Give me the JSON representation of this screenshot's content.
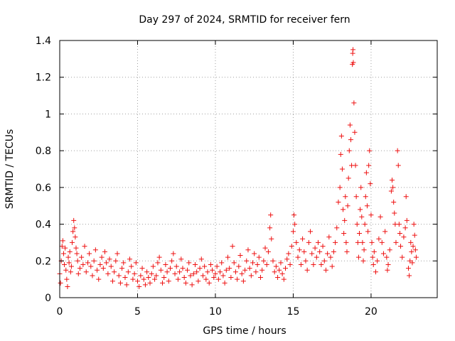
{
  "chart_data": {
    "type": "scatter",
    "title": "Day 297 of 2024, SRMTID for receiver fern",
    "xlabel": "GPS time / hours",
    "ylabel": "SRMTID / TECUs",
    "xlim": [
      0,
      24.25
    ],
    "ylim": [
      0,
      1.4
    ],
    "xticks": [
      0,
      5,
      10,
      15,
      20
    ],
    "xtick_labels": [
      "0",
      "5",
      "10",
      "15",
      "20"
    ],
    "yticks": [
      0,
      0.2,
      0.4,
      0.6,
      0.8,
      1.0,
      1.2,
      1.4
    ],
    "ytick_labels": [
      "0",
      "0.2",
      "0.4",
      "0.6",
      "0.8",
      "1",
      "1.2",
      "1.4"
    ],
    "grid": true,
    "marker": "plus",
    "colors": {
      "series": "#ee1111",
      "grid": "#a0a0a0",
      "axis": "#000000"
    },
    "series": [
      {
        "name": "SRMTID",
        "points": [
          [
            0.0,
            0.13
          ],
          [
            0.05,
            0.08
          ],
          [
            0.1,
            0.2
          ],
          [
            0.15,
            0.28
          ],
          [
            0.2,
            0.31
          ],
          [
            0.25,
            0.24
          ],
          [
            0.3,
            0.18
          ],
          [
            0.35,
            0.27
          ],
          [
            0.4,
            0.15
          ],
          [
            0.45,
            0.1
          ],
          [
            0.5,
            0.06
          ],
          [
            0.55,
            0.22
          ],
          [
            0.6,
            0.19
          ],
          [
            0.65,
            0.25
          ],
          [
            0.7,
            0.14
          ],
          [
            0.75,
            0.17
          ],
          [
            0.8,
            0.3
          ],
          [
            0.85,
            0.36
          ],
          [
            0.9,
            0.42
          ],
          [
            0.95,
            0.38
          ],
          [
            1.0,
            0.33
          ],
          [
            1.05,
            0.27
          ],
          [
            1.1,
            0.24
          ],
          [
            1.15,
            0.2
          ],
          [
            1.2,
            0.13
          ],
          [
            1.3,
            0.16
          ],
          [
            1.4,
            0.22
          ],
          [
            1.5,
            0.18
          ],
          [
            1.6,
            0.28
          ],
          [
            1.7,
            0.14
          ],
          [
            1.8,
            0.19
          ],
          [
            1.9,
            0.24
          ],
          [
            2.0,
            0.17
          ],
          [
            2.1,
            0.12
          ],
          [
            2.2,
            0.2
          ],
          [
            2.3,
            0.26
          ],
          [
            2.4,
            0.15
          ],
          [
            2.5,
            0.1
          ],
          [
            2.6,
            0.18
          ],
          [
            2.7,
            0.22
          ],
          [
            2.8,
            0.16
          ],
          [
            2.9,
            0.25
          ],
          [
            3.0,
            0.19
          ],
          [
            3.1,
            0.13
          ],
          [
            3.2,
            0.21
          ],
          [
            3.3,
            0.17
          ],
          [
            3.4,
            0.09
          ],
          [
            3.5,
            0.14
          ],
          [
            3.6,
            0.2
          ],
          [
            3.7,
            0.24
          ],
          [
            3.8,
            0.12
          ],
          [
            3.9,
            0.08
          ],
          [
            4.0,
            0.16
          ],
          [
            4.1,
            0.19
          ],
          [
            4.2,
            0.11
          ],
          [
            4.3,
            0.07
          ],
          [
            4.4,
            0.14
          ],
          [
            4.5,
            0.21
          ],
          [
            4.6,
            0.17
          ],
          [
            4.7,
            0.1
          ],
          [
            4.8,
            0.13
          ],
          [
            4.9,
            0.19
          ],
          [
            5.0,
            0.09
          ],
          [
            5.1,
            0.06
          ],
          [
            5.2,
            0.12
          ],
          [
            5.3,
            0.16
          ],
          [
            5.4,
            0.1
          ],
          [
            5.5,
            0.07
          ],
          [
            5.6,
            0.14
          ],
          [
            5.7,
            0.11
          ],
          [
            5.8,
            0.08
          ],
          [
            5.9,
            0.13
          ],
          [
            6.0,
            0.17
          ],
          [
            6.1,
            0.1
          ],
          [
            6.2,
            0.12
          ],
          [
            6.3,
            0.19
          ],
          [
            6.4,
            0.22
          ],
          [
            6.5,
            0.15
          ],
          [
            6.6,
            0.08
          ],
          [
            6.7,
            0.11
          ],
          [
            6.8,
            0.18
          ],
          [
            6.9,
            0.14
          ],
          [
            7.0,
            0.09
          ],
          [
            7.1,
            0.16
          ],
          [
            7.2,
            0.2
          ],
          [
            7.3,
            0.24
          ],
          [
            7.4,
            0.13
          ],
          [
            7.5,
            0.17
          ],
          [
            7.6,
            0.1
          ],
          [
            7.7,
            0.14
          ],
          [
            7.8,
            0.21
          ],
          [
            7.9,
            0.16
          ],
          [
            8.0,
            0.11
          ],
          [
            8.1,
            0.08
          ],
          [
            8.2,
            0.15
          ],
          [
            8.3,
            0.19
          ],
          [
            8.4,
            0.12
          ],
          [
            8.5,
            0.07
          ],
          [
            8.6,
            0.13
          ],
          [
            8.7,
            0.18
          ],
          [
            8.8,
            0.14
          ],
          [
            8.9,
            0.09
          ],
          [
            9.0,
            0.16
          ],
          [
            9.1,
            0.21
          ],
          [
            9.2,
            0.12
          ],
          [
            9.3,
            0.17
          ],
          [
            9.4,
            0.1
          ],
          [
            9.5,
            0.14
          ],
          [
            9.6,
            0.08
          ],
          [
            9.7,
            0.18
          ],
          [
            9.8,
            0.15
          ],
          [
            9.9,
            0.11
          ],
          [
            10.0,
            0.13
          ],
          [
            10.1,
            0.17
          ],
          [
            10.2,
            0.1
          ],
          [
            10.3,
            0.14
          ],
          [
            10.4,
            0.19
          ],
          [
            10.5,
            0.12
          ],
          [
            10.6,
            0.08
          ],
          [
            10.7,
            0.15
          ],
          [
            10.8,
            0.22
          ],
          [
            10.9,
            0.16
          ],
          [
            11.0,
            0.11
          ],
          [
            11.1,
            0.28
          ],
          [
            11.2,
            0.19
          ],
          [
            11.3,
            0.14
          ],
          [
            11.4,
            0.1
          ],
          [
            11.5,
            0.17
          ],
          [
            11.6,
            0.23
          ],
          [
            11.7,
            0.13
          ],
          [
            11.8,
            0.09
          ],
          [
            11.9,
            0.15
          ],
          [
            12.0,
            0.2
          ],
          [
            12.1,
            0.26
          ],
          [
            12.2,
            0.16
          ],
          [
            12.3,
            0.12
          ],
          [
            12.4,
            0.19
          ],
          [
            12.5,
            0.24
          ],
          [
            12.6,
            0.14
          ],
          [
            12.7,
            0.18
          ],
          [
            12.8,
            0.22
          ],
          [
            12.9,
            0.11
          ],
          [
            13.0,
            0.15
          ],
          [
            13.1,
            0.2
          ],
          [
            13.2,
            0.27
          ],
          [
            13.3,
            0.18
          ],
          [
            13.4,
            0.25
          ],
          [
            13.5,
            0.38
          ],
          [
            13.55,
            0.45
          ],
          [
            13.6,
            0.32
          ],
          [
            13.7,
            0.2
          ],
          [
            13.8,
            0.14
          ],
          [
            13.9,
            0.17
          ],
          [
            14.0,
            0.11
          ],
          [
            14.1,
            0.15
          ],
          [
            14.2,
            0.19
          ],
          [
            14.3,
            0.13
          ],
          [
            14.4,
            0.1
          ],
          [
            14.5,
            0.16
          ],
          [
            14.6,
            0.21
          ],
          [
            14.7,
            0.24
          ],
          [
            14.8,
            0.18
          ],
          [
            14.9,
            0.28
          ],
          [
            15.0,
            0.36
          ],
          [
            15.05,
            0.45
          ],
          [
            15.1,
            0.4
          ],
          [
            15.2,
            0.3
          ],
          [
            15.3,
            0.22
          ],
          [
            15.4,
            0.26
          ],
          [
            15.5,
            0.18
          ],
          [
            15.6,
            0.32
          ],
          [
            15.7,
            0.25
          ],
          [
            15.8,
            0.2
          ],
          [
            15.9,
            0.15
          ],
          [
            16.0,
            0.3
          ],
          [
            16.1,
            0.36
          ],
          [
            16.2,
            0.24
          ],
          [
            16.3,
            0.18
          ],
          [
            16.4,
            0.27
          ],
          [
            16.5,
            0.22
          ],
          [
            16.6,
            0.3
          ],
          [
            16.7,
            0.25
          ],
          [
            16.8,
            0.18
          ],
          [
            16.9,
            0.28
          ],
          [
            17.0,
            0.2
          ],
          [
            17.1,
            0.15
          ],
          [
            17.2,
            0.24
          ],
          [
            17.3,
            0.33
          ],
          [
            17.4,
            0.22
          ],
          [
            17.5,
            0.17
          ],
          [
            17.6,
            0.25
          ],
          [
            17.7,
            0.3
          ],
          [
            17.8,
            0.38
          ],
          [
            17.9,
            0.52
          ],
          [
            18.0,
            0.6
          ],
          [
            18.05,
            0.78
          ],
          [
            18.1,
            0.88
          ],
          [
            18.15,
            0.7
          ],
          [
            18.2,
            0.48
          ],
          [
            18.25,
            0.35
          ],
          [
            18.3,
            0.42
          ],
          [
            18.35,
            0.55
          ],
          [
            18.4,
            0.3
          ],
          [
            18.45,
            0.25
          ],
          [
            18.5,
            0.5
          ],
          [
            18.55,
            0.65
          ],
          [
            18.6,
            0.8
          ],
          [
            18.65,
            0.94
          ],
          [
            18.7,
            0.86
          ],
          [
            18.75,
            0.72
          ],
          [
            18.8,
            1.27
          ],
          [
            18.82,
            1.33
          ],
          [
            18.84,
            1.35
          ],
          [
            18.86,
            1.28
          ],
          [
            18.9,
            1.06
          ],
          [
            18.95,
            0.9
          ],
          [
            19.0,
            0.72
          ],
          [
            19.05,
            0.55
          ],
          [
            19.1,
            0.4
          ],
          [
            19.15,
            0.3
          ],
          [
            19.2,
            0.22
          ],
          [
            19.25,
            0.35
          ],
          [
            19.3,
            0.48
          ],
          [
            19.35,
            0.6
          ],
          [
            19.4,
            0.44
          ],
          [
            19.45,
            0.3
          ],
          [
            19.5,
            0.2
          ],
          [
            19.55,
            0.26
          ],
          [
            19.6,
            0.4
          ],
          [
            19.65,
            0.55
          ],
          [
            19.7,
            0.68
          ],
          [
            19.75,
            0.5
          ],
          [
            19.8,
            0.36
          ],
          [
            19.85,
            0.72
          ],
          [
            19.9,
            0.8
          ],
          [
            19.95,
            0.62
          ],
          [
            20.0,
            0.45
          ],
          [
            20.05,
            0.3
          ],
          [
            20.1,
            0.22
          ],
          [
            20.15,
            0.18
          ],
          [
            20.2,
            0.25
          ],
          [
            20.3,
            0.14
          ],
          [
            20.4,
            0.2
          ],
          [
            20.5,
            0.32
          ],
          [
            20.6,
            0.44
          ],
          [
            20.7,
            0.3
          ],
          [
            20.8,
            0.24
          ],
          [
            20.9,
            0.36
          ],
          [
            21.0,
            0.22
          ],
          [
            21.05,
            0.15
          ],
          [
            21.1,
            0.18
          ],
          [
            21.2,
            0.26
          ],
          [
            21.3,
            0.58
          ],
          [
            21.35,
            0.64
          ],
          [
            21.4,
            0.6
          ],
          [
            21.45,
            0.52
          ],
          [
            21.5,
            0.46
          ],
          [
            21.55,
            0.4
          ],
          [
            21.6,
            0.3
          ],
          [
            21.7,
            0.8
          ],
          [
            21.75,
            0.72
          ],
          [
            21.8,
            0.4
          ],
          [
            21.85,
            0.35
          ],
          [
            21.9,
            0.28
          ],
          [
            22.0,
            0.22
          ],
          [
            22.1,
            0.33
          ],
          [
            22.2,
            0.38
          ],
          [
            22.25,
            0.55
          ],
          [
            22.3,
            0.42
          ],
          [
            22.4,
            0.16
          ],
          [
            22.45,
            0.12
          ],
          [
            22.5,
            0.2
          ],
          [
            22.55,
            0.3
          ],
          [
            22.6,
            0.25
          ],
          [
            22.65,
            0.19
          ],
          [
            22.7,
            0.28
          ],
          [
            22.75,
            0.4
          ],
          [
            22.8,
            0.34
          ],
          [
            22.85,
            0.26
          ],
          [
            22.9,
            0.22
          ]
        ]
      }
    ]
  }
}
